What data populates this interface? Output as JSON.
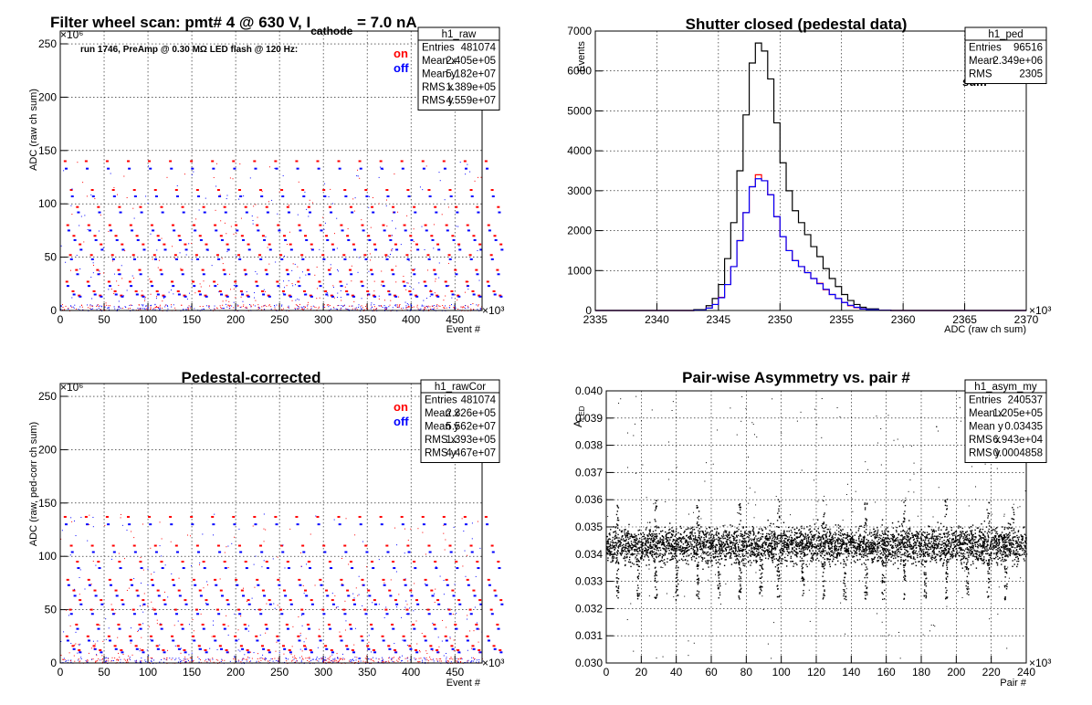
{
  "colors": {
    "on": "#ff0000",
    "off": "#0000ff",
    "sum": "#000000"
  },
  "chart_data": [
    {
      "type": "scatter",
      "title": "Filter wheel scan: pmt#   4 @   630 V, I",
      "title_sub": "cathode",
      "title_tail": " = 7.0 nA",
      "ylabel": "ADC (raw ch sum)",
      "xlabel": "Event #",
      "x_exponent": "×10³",
      "y_exponent": "×10⁶",
      "xlim": [
        0,
        481
      ],
      "ylim": [
        0,
        262
      ],
      "x_ticks": [
        0,
        50,
        100,
        150,
        200,
        250,
        300,
        350,
        400,
        450
      ],
      "y_ticks": [
        0,
        50,
        100,
        150,
        200,
        250
      ],
      "annotation": "run 1746, PreAmp @ 0.30 MΩ  LED flash @  120 Hz:",
      "legend": {
        "on": "on",
        "off": "off"
      },
      "stats": {
        "name": "h1_raw",
        "rows": [
          [
            "Entries",
            "481074"
          ],
          [
            "Mean x",
            "2.405e+05"
          ],
          [
            "Mean y",
            "5.182e+07"
          ],
          [
            "RMS x",
            "1.389e+05"
          ],
          [
            "RMS y",
            "4.559e+07"
          ]
        ]
      },
      "pattern": {
        "period": 24,
        "levels_on": [
          140,
          113,
          97,
          80,
          70,
          62,
          52,
          38,
          27,
          18,
          14
        ],
        "levels_off": [
          133,
          107,
          92,
          75,
          66,
          57,
          48,
          34,
          23,
          15,
          13
        ]
      }
    },
    {
      "type": "line",
      "title": "Shutter closed (pedestal data)",
      "ylabel": "Events",
      "xlabel": "ADC (raw ch sum)",
      "x_exponent": "×10³",
      "xlim": [
        2335,
        2370
      ],
      "ylim": [
        0,
        7000
      ],
      "x_ticks": [
        2335,
        2340,
        2345,
        2350,
        2355,
        2360,
        2365,
        2370
      ],
      "y_ticks": [
        0,
        1000,
        2000,
        3000,
        4000,
        5000,
        6000,
        7000
      ],
      "legend": {
        "on": "on",
        "off": "off",
        "sum": "sum"
      },
      "stats": {
        "name": "h1_ped",
        "rows": [
          [
            "Entries",
            "96516"
          ],
          [
            "Mean",
            "2.349e+06"
          ],
          [
            "RMS",
            "2305"
          ]
        ]
      },
      "x": [
        2342,
        2343,
        2344,
        2344.5,
        2345,
        2345.5,
        2346,
        2346.5,
        2347,
        2347.5,
        2348,
        2348.5,
        2349,
        2349.5,
        2350,
        2350.5,
        2351,
        2351.5,
        2352,
        2352.5,
        2353,
        2353.5,
        2354,
        2354.5,
        2355,
        2355.5,
        2356,
        2356.5,
        2357,
        2358,
        2359
      ],
      "series": [
        {
          "name": "sum",
          "values": [
            0,
            20,
            120,
            300,
            650,
            1300,
            2200,
            3500,
            4900,
            6200,
            6700,
            6500,
            5800,
            4700,
            3700,
            3000,
            2500,
            2200,
            1900,
            1600,
            1350,
            1050,
            800,
            600,
            400,
            250,
            150,
            80,
            40,
            10,
            0
          ]
        },
        {
          "name": "on",
          "values": [
            0,
            10,
            60,
            150,
            330,
            650,
            1100,
            1750,
            2450,
            3100,
            3400,
            3250,
            2900,
            2350,
            1850,
            1500,
            1250,
            1100,
            950,
            800,
            680,
            520,
            400,
            300,
            200,
            120,
            70,
            40,
            20,
            5,
            0
          ]
        },
        {
          "name": "off",
          "values": [
            0,
            10,
            60,
            150,
            320,
            650,
            1100,
            1750,
            2450,
            3100,
            3300,
            3250,
            2900,
            2350,
            1850,
            1500,
            1250,
            1100,
            950,
            800,
            670,
            530,
            400,
            300,
            200,
            130,
            80,
            40,
            20,
            5,
            0
          ]
        }
      ]
    },
    {
      "type": "scatter",
      "title": "Pedestal-corrected",
      "ylabel": "ADC (raw, ped-corr ch sum)",
      "xlabel": "Event #",
      "x_exponent": "×10³",
      "y_exponent": "×10⁶",
      "xlim": [
        0,
        481
      ],
      "ylim": [
        0,
        262
      ],
      "x_ticks": [
        0,
        50,
        100,
        150,
        200,
        250,
        300,
        350,
        400,
        450
      ],
      "y_ticks": [
        0,
        50,
        100,
        150,
        200,
        250
      ],
      "legend": {
        "on": "on",
        "off": "off"
      },
      "stats": {
        "name": "h1_rawCor",
        "rows": [
          [
            "Entries",
            "481074"
          ],
          [
            "Mean x",
            "2.326e+05"
          ],
          [
            "Mean y",
            "5.562e+07"
          ],
          [
            "RMS x",
            "1.393e+05"
          ],
          [
            "RMS y",
            "4.467e+07"
          ]
        ]
      },
      "pattern": {
        "period": 24,
        "levels_on": [
          137,
          110,
          95,
          78,
          68,
          59,
          50,
          36,
          25,
          16,
          12
        ],
        "levels_off": [
          130,
          104,
          89,
          73,
          63,
          55,
          46,
          32,
          21,
          13,
          10
        ]
      }
    },
    {
      "type": "scatter",
      "title": "Pair-wise Asymmetry vs. pair #",
      "ylabel": "A",
      "ylabel_sub": "LED",
      "xlabel": "Pair #",
      "x_exponent": "×10³",
      "xlim": [
        0,
        240
      ],
      "ylim": [
        0.03,
        0.04
      ],
      "x_ticks": [
        0,
        20,
        40,
        60,
        80,
        100,
        120,
        140,
        160,
        180,
        200,
        220,
        240
      ],
      "y_ticks": [
        0.03,
        0.031,
        0.032,
        0.033,
        0.034,
        0.035,
        0.036,
        0.037,
        0.038,
        0.039,
        0.04
      ],
      "stats": {
        "name": "h1_asym_my",
        "rows": [
          [
            "Entries",
            "240537"
          ],
          [
            "Mean x",
            "1.205e+05"
          ],
          [
            "Mean y",
            "0.03435"
          ],
          [
            "RMS x",
            "6.943e+04"
          ],
          [
            "RMS y",
            "0.0004858"
          ]
        ]
      },
      "band": {
        "center": 0.03435,
        "half_width": 0.0005
      },
      "spikes_down": [
        6,
        18,
        28,
        40,
        52,
        64,
        76,
        88,
        98,
        112,
        124,
        136,
        148,
        158,
        170,
        182,
        194,
        206,
        218,
        228
      ],
      "spikes_up": [
        6,
        28,
        52,
        76,
        98,
        124,
        148,
        170,
        194,
        218,
        232
      ]
    }
  ]
}
